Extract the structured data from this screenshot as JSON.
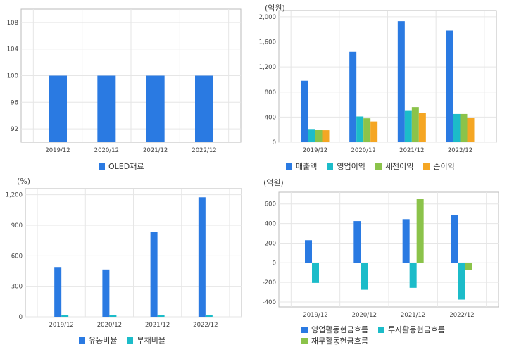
{
  "colors": {
    "blue": "#2a7ae2",
    "teal": "#1cbcc9",
    "green": "#8bc34a",
    "orange": "#f5a623",
    "grid": "#e6e6e6",
    "axis": "#999999"
  },
  "chart_data": [
    {
      "type": "bar",
      "unit_label": "",
      "categories": [
        "2019/12",
        "2020/12",
        "2021/12",
        "2022/12"
      ],
      "series": [
        {
          "name": "OLED재료",
          "color": "#2a7ae2",
          "values": [
            100,
            100,
            100,
            100
          ]
        }
      ],
      "ylim": [
        90,
        110
      ],
      "yticks": [
        92,
        96,
        100,
        104,
        108
      ],
      "tick_labels": [
        "92",
        "96",
        "100",
        "104",
        "108"
      ],
      "grid": true,
      "legend_position": "bottom"
    },
    {
      "type": "bar",
      "unit_label": "(억원)",
      "categories": [
        "2019/12",
        "2020/12",
        "2021/12",
        "2022/12"
      ],
      "series": [
        {
          "name": "매출액",
          "color": "#2a7ae2",
          "values": [
            980,
            1440,
            1930,
            1780
          ]
        },
        {
          "name": "영업이익",
          "color": "#1cbcc9",
          "values": [
            210,
            410,
            510,
            450
          ]
        },
        {
          "name": "세전이익",
          "color": "#8bc34a",
          "values": [
            200,
            380,
            560,
            450
          ]
        },
        {
          "name": "순이익",
          "color": "#f5a623",
          "values": [
            190,
            330,
            470,
            390
          ]
        }
      ],
      "ylim": [
        0,
        2100
      ],
      "yticks": [
        0,
        400,
        800,
        1200,
        1600,
        2000
      ],
      "tick_labels": [
        "0",
        "400",
        "800",
        "1,200",
        "1,600",
        "2,000"
      ],
      "grid": true,
      "legend_position": "bottom"
    },
    {
      "type": "bar",
      "unit_label": "(%)",
      "categories": [
        "2019/12",
        "2020/12",
        "2021/12",
        "2022/12"
      ],
      "series": [
        {
          "name": "유동비율",
          "color": "#2a7ae2",
          "values": [
            490,
            465,
            835,
            1175
          ]
        },
        {
          "name": "부채비율",
          "color": "#1cbcc9",
          "values": [
            15,
            15,
            15,
            15
          ]
        }
      ],
      "ylim": [
        0,
        1260
      ],
      "yticks": [
        0,
        300,
        600,
        900,
        1200
      ],
      "tick_labels": [
        "0",
        "300",
        "600",
        "900",
        "1,200"
      ],
      "grid": true,
      "legend_position": "bottom"
    },
    {
      "type": "bar",
      "unit_label": "(억원)",
      "categories": [
        "2019/12",
        "2020/12",
        "2021/12",
        "2022/12"
      ],
      "series": [
        {
          "name": "영업활동현금흐름",
          "color": "#2a7ae2",
          "values": [
            230,
            425,
            445,
            490
          ]
        },
        {
          "name": "투자활동현금흐름",
          "color": "#1cbcc9",
          "values": [
            -205,
            -275,
            -255,
            -375
          ]
        },
        {
          "name": "재무활동현금흐름",
          "color": "#8bc34a",
          "values": [
            0,
            0,
            650,
            -75
          ]
        }
      ],
      "ylim": [
        -450,
        720
      ],
      "yticks": [
        -400,
        -200,
        0,
        200,
        400,
        600
      ],
      "tick_labels": [
        "-400",
        "-200",
        "0",
        "200",
        "400",
        "600"
      ],
      "grid": true,
      "legend_position": "bottom"
    }
  ]
}
